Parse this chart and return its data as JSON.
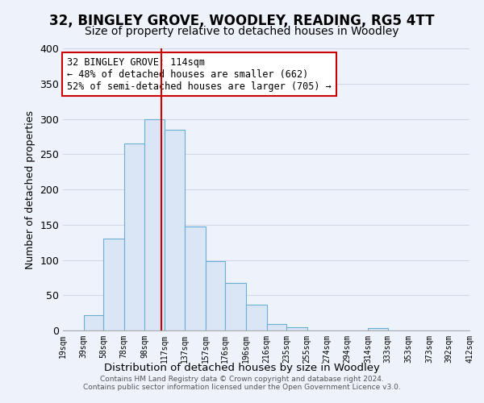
{
  "title": "32, BINGLEY GROVE, WOODLEY, READING, RG5 4TT",
  "subtitle": "Size of property relative to detached houses in Woodley",
  "xlabel": "Distribution of detached houses by size in Woodley",
  "ylabel": "Number of detached properties",
  "bin_edges": [
    19,
    39,
    58,
    78,
    98,
    117,
    137,
    157,
    176,
    196,
    216,
    235,
    255,
    274,
    294,
    314,
    333,
    353,
    373,
    392,
    412
  ],
  "bar_heights": [
    0,
    22,
    130,
    265,
    300,
    285,
    147,
    98,
    68,
    37,
    9,
    5,
    0,
    0,
    0,
    3,
    0,
    0,
    0,
    0
  ],
  "bar_color": "#dae6f5",
  "bar_edge_color": "#6baed6",
  "vline_x": 114,
  "vline_color": "#cc0000",
  "ylim": [
    0,
    400
  ],
  "yticks": [
    0,
    50,
    100,
    150,
    200,
    250,
    300,
    350,
    400
  ],
  "annotation_title": "32 BINGLEY GROVE: 114sqm",
  "annotation_line1": "← 48% of detached houses are smaller (662)",
  "annotation_line2": "52% of semi-detached houses are larger (705) →",
  "annotation_box_color": "#ffffff",
  "annotation_box_edge": "#cc0000",
  "footer_line1": "Contains HM Land Registry data © Crown copyright and database right 2024.",
  "footer_line2": "Contains public sector information licensed under the Open Government Licence v3.0.",
  "background_color": "#eef2fa",
  "grid_color": "#d0d8e8",
  "title_fontsize": 12,
  "subtitle_fontsize": 10,
  "tick_labels": [
    "19sqm",
    "39sqm",
    "58sqm",
    "78sqm",
    "98sqm",
    "117sqm",
    "137sqm",
    "157sqm",
    "176sqm",
    "196sqm",
    "216sqm",
    "235sqm",
    "255sqm",
    "274sqm",
    "294sqm",
    "314sqm",
    "333sqm",
    "353sqm",
    "373sqm",
    "392sqm",
    "412sqm"
  ]
}
